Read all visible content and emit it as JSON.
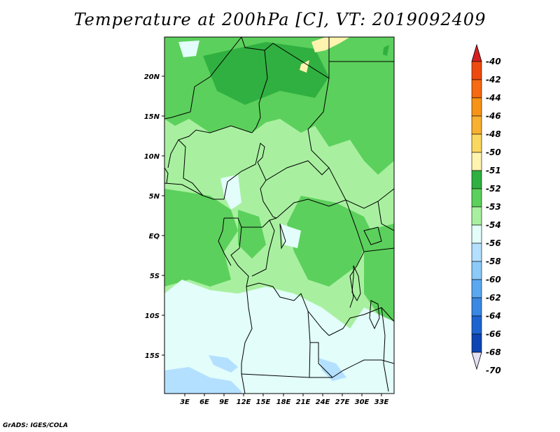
{
  "title": "Temperature at 200hPa [C], VT: 2019092409",
  "credit": "GrADS: IGES/COLA",
  "map": {
    "lat_labels": [
      "20N",
      "15N",
      "10N",
      "5N",
      "EQ",
      "5S",
      "10S",
      "15S"
    ],
    "lon_labels": [
      "3E",
      "6E",
      "9E",
      "12E",
      "15E",
      "18E",
      "21E",
      "24E",
      "27E",
      "30E",
      "33E"
    ]
  },
  "legend": {
    "labels": [
      "-40",
      "-42",
      "-44",
      "-46",
      "-48",
      "-50",
      "-51",
      "-52",
      "-53",
      "-54",
      "-56",
      "-58",
      "-60",
      "-62",
      "-64",
      "-66",
      "-68",
      "-70"
    ],
    "colors": [
      "#d62020",
      "#ee4a10",
      "#f56a12",
      "#f79418",
      "#f8b030",
      "#fad860",
      "#fff3b0",
      "#30b040",
      "#5cd05c",
      "#a8f0a0",
      "#e2fdfa",
      "#b4e0ff",
      "#8ccaf8",
      "#5aa8f0",
      "#3a88e4",
      "#1e64d0",
      "#0e44b4",
      "#061a6e"
    ]
  }
}
